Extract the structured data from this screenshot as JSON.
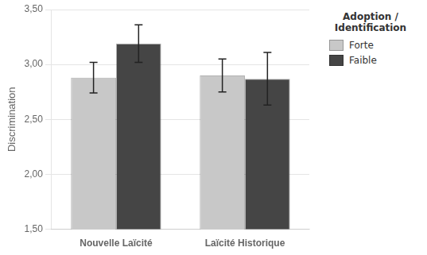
{
  "chart_data": {
    "type": "bar",
    "categories": [
      "Nouvelle Laïcité",
      "Laïcité Historique"
    ],
    "series": [
      {
        "name": "Forte",
        "color": "#c8c8c8",
        "values": [
          2.88,
          2.9
        ],
        "errors": [
          0.14,
          0.15
        ]
      },
      {
        "name": "Faible",
        "color": "#454545",
        "values": [
          3.19,
          2.87
        ],
        "errors": [
          0.17,
          0.24
        ]
      }
    ],
    "ylabel": "Discrimination",
    "legend_title": "Adoption /\nIdentification",
    "ylim": [
      1.5,
      3.5
    ],
    "yticks": [
      {
        "value": 1.5,
        "label": "1,50"
      },
      {
        "value": 2.0,
        "label": "2,00"
      },
      {
        "value": 2.5,
        "label": "2,50"
      },
      {
        "value": 3.0,
        "label": "3,00"
      },
      {
        "value": 3.5,
        "label": "3,50"
      }
    ],
    "grid": true,
    "legend": "right"
  }
}
